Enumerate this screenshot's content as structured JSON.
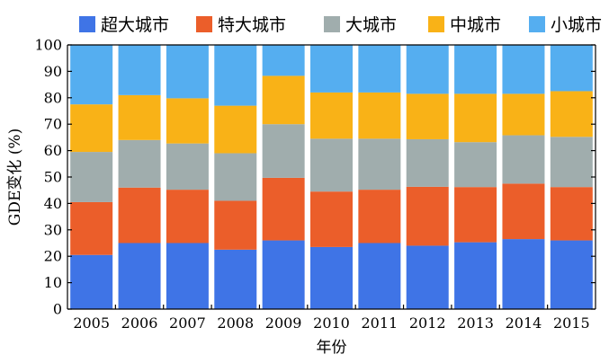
{
  "chart_data": {
    "type": "bar",
    "stacked": true,
    "categories": [
      "2005",
      "2006",
      "2007",
      "2008",
      "2009",
      "2010",
      "2011",
      "2012",
      "2013",
      "2014",
      "2015"
    ],
    "series": [
      {
        "name": "超大城市",
        "color": "#3f74e6",
        "values": [
          20.5,
          25,
          25,
          22.5,
          26,
          23.5,
          25,
          24,
          25.3,
          26.5,
          26
        ]
      },
      {
        "name": "特大城市",
        "color": "#eb5e2a",
        "values": [
          20,
          21,
          20.2,
          18.5,
          23.7,
          21,
          20.2,
          22.3,
          20.9,
          21,
          20.2
        ]
      },
      {
        "name": "大城市",
        "color": "#a0adad",
        "values": [
          19,
          18,
          17.5,
          18,
          20.3,
          20,
          19.3,
          18,
          17,
          18.3,
          19
        ]
      },
      {
        "name": "中城市",
        "color": "#f9b217",
        "values": [
          18,
          17,
          17.1,
          18,
          18.3,
          17.5,
          17.5,
          17.2,
          18.3,
          15.7,
          17.3
        ]
      },
      {
        "name": "小城市",
        "color": "#55aef0",
        "values": [
          22.5,
          19,
          20.2,
          23,
          11.7,
          18,
          18,
          18.5,
          18.5,
          18.5,
          17.5
        ]
      }
    ],
    "ylabel": "GDE变化 (%)",
    "xlabel": "年份",
    "ylim": [
      0,
      100
    ],
    "yticks": [
      0,
      10,
      20,
      30,
      40,
      50,
      60,
      70,
      80,
      90,
      100
    ],
    "legend_position": "top",
    "grid": false
  }
}
